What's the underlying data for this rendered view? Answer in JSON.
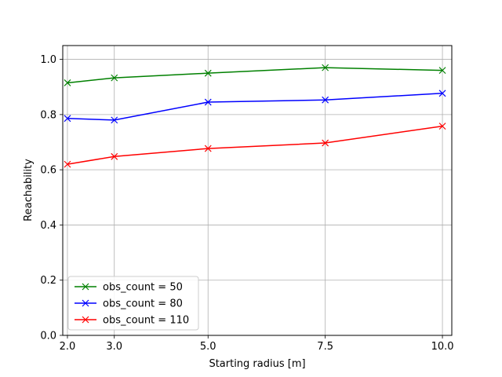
{
  "chart_data": {
    "type": "line",
    "title": "",
    "xlabel": "Starting radius [m]",
    "ylabel": "Reachability",
    "x": [
      2.0,
      3.0,
      5.0,
      7.5,
      10.0
    ],
    "xticks": [
      "2.0",
      "3.0",
      "5.0",
      "7.5",
      "10.0"
    ],
    "yticks": [
      "0.0",
      "0.2",
      "0.4",
      "0.6",
      "0.8",
      "1.0"
    ],
    "ytick_values": [
      0.0,
      0.2,
      0.4,
      0.6,
      0.8,
      1.0
    ],
    "xlim": [
      1.9,
      10.2
    ],
    "ylim": [
      0.0,
      1.05
    ],
    "grid": true,
    "legend_position": "lower-left",
    "marker": "x",
    "series": [
      {
        "name": "obs_count = 50",
        "color": "#008000",
        "values": [
          0.915,
          0.933,
          0.95,
          0.97,
          0.96
        ]
      },
      {
        "name": "obs_count = 80",
        "color": "#0000ff",
        "values": [
          0.786,
          0.78,
          0.845,
          0.853,
          0.877
        ]
      },
      {
        "name": "obs_count = 110",
        "color": "#ff0000",
        "values": [
          0.62,
          0.648,
          0.677,
          0.697,
          0.758
        ]
      }
    ]
  }
}
